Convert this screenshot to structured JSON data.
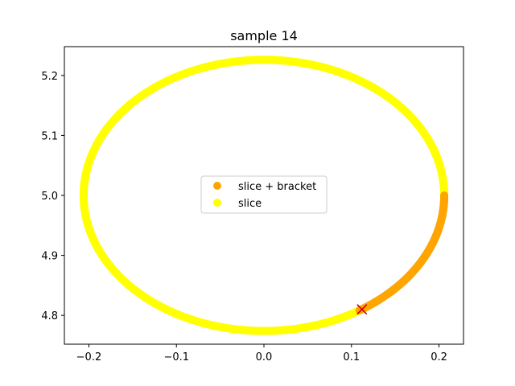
{
  "chart_data": {
    "type": "scatter",
    "title": "sample 14",
    "xlabel": "",
    "ylabel": "",
    "xlim": [
      -0.228,
      0.228
    ],
    "ylim": [
      4.752,
      5.248
    ],
    "xticks": [
      -0.2,
      -0.1,
      0.0,
      0.1,
      0.2
    ],
    "xtick_labels": [
      "−0.2",
      "−0.1",
      "0.0",
      "0.1",
      "0.2"
    ],
    "yticks": [
      4.8,
      4.9,
      5.0,
      5.1,
      5.2
    ],
    "ytick_labels": [
      "4.8",
      "4.9",
      "5.0",
      "5.1",
      "5.2"
    ],
    "grid": false,
    "legend_position": "center",
    "ellipse": {
      "center": [
        0.0,
        5.0
      ],
      "rx": 0.206,
      "ry": 0.226
    },
    "series": [
      {
        "name": "slice + bracket",
        "color": "#ffa500",
        "angle_range_deg": [
          -58,
          0
        ]
      },
      {
        "name": "slice",
        "color": "#ffff00",
        "angle_range_deg": [
          0,
          302
        ]
      }
    ],
    "marker": {
      "shape": "x",
      "color": "#cc0000",
      "x": 0.112,
      "y": 4.81
    }
  }
}
